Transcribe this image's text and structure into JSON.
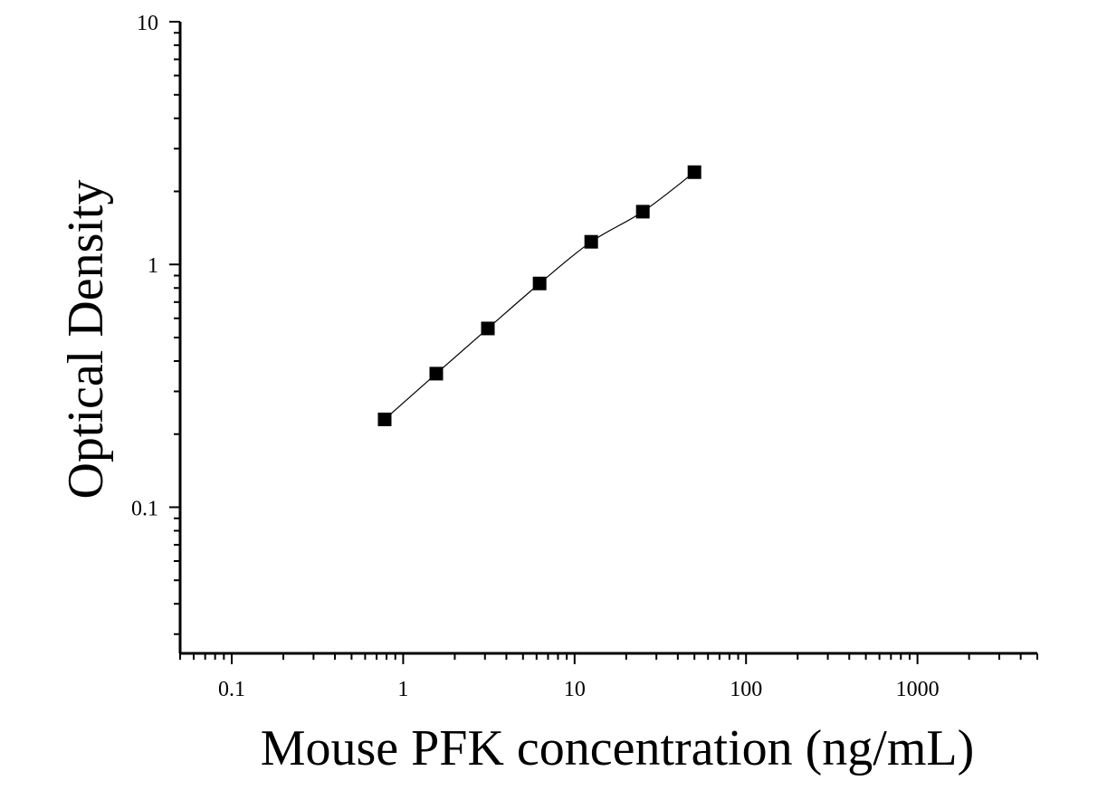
{
  "chart_data": {
    "type": "scatter",
    "title": "",
    "xlabel": "Mouse PFK concentration (ng/mL)",
    "ylabel": "Optical Density",
    "x_scale": "log",
    "y_scale": "log",
    "xlim": [
      0.05,
      5000
    ],
    "ylim": [
      0.025,
      10
    ],
    "x_ticks": [
      {
        "value": 0.1,
        "label": "0.1"
      },
      {
        "value": 1,
        "label": "1"
      },
      {
        "value": 10,
        "label": "10"
      },
      {
        "value": 100,
        "label": "100"
      },
      {
        "value": 1000,
        "label": "1000"
      }
    ],
    "y_ticks": [
      {
        "value": 0.1,
        "label": "0.1"
      },
      {
        "value": 1,
        "label": "1"
      },
      {
        "value": 10,
        "label": "10"
      }
    ],
    "grid": false,
    "legend": "none",
    "series": [
      {
        "points": [
          {
            "x": 0.78,
            "y": 0.23
          },
          {
            "x": 1.56,
            "y": 0.355
          },
          {
            "x": 3.12,
            "y": 0.545
          },
          {
            "x": 6.25,
            "y": 0.835
          },
          {
            "x": 12.5,
            "y": 1.24
          },
          {
            "x": 25,
            "y": 1.65
          },
          {
            "x": 50,
            "y": 2.4
          }
        ],
        "marker": "square",
        "color": "#000000",
        "fit_line": true
      }
    ]
  }
}
